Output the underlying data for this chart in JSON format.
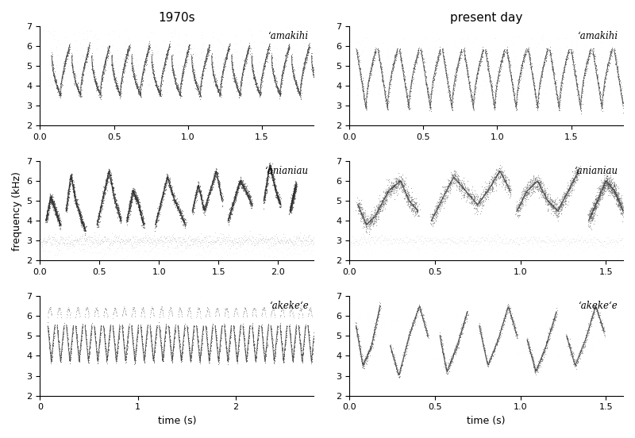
{
  "title_left": "1970s",
  "title_right": "present day",
  "ylabel": "frequency (kHz)",
  "xlabel": "time (s)",
  "background_color": "#ffffff",
  "panels": {
    "left": [
      {
        "species": "‘amakihi",
        "xlim": [
          0,
          1.85
        ],
        "xticks": [
          0,
          0.5,
          1.0,
          1.5
        ],
        "ylim": [
          2,
          7
        ],
        "yticks": [
          2,
          3,
          4,
          5,
          6,
          7
        ]
      },
      {
        "species": "‘anianiau",
        "xlim": [
          0,
          2.3
        ],
        "xticks": [
          0,
          0.5,
          1.0,
          1.5,
          2.0
        ],
        "ylim": [
          2,
          7
        ],
        "yticks": [
          2,
          3,
          4,
          5,
          6,
          7
        ]
      },
      {
        "species": "‘akeke‘e",
        "xlim": [
          0,
          2.8
        ],
        "xticks": [
          0,
          1,
          2
        ],
        "ylim": [
          2,
          7
        ],
        "yticks": [
          2,
          3,
          4,
          5,
          6,
          7
        ]
      }
    ],
    "right": [
      {
        "species": "‘amakihi",
        "xlim": [
          0,
          1.85
        ],
        "xticks": [
          0,
          0.5,
          1.0,
          1.5
        ],
        "ylim": [
          2,
          7
        ],
        "yticks": [
          2,
          3,
          4,
          5,
          6,
          7
        ]
      },
      {
        "species": "‘anianiau",
        "xlim": [
          0,
          1.6
        ],
        "xticks": [
          0,
          0.5,
          1.0,
          1.5
        ],
        "ylim": [
          2,
          7
        ],
        "yticks": [
          2,
          3,
          4,
          5,
          6,
          7
        ]
      },
      {
        "species": "‘akeke‘e",
        "xlim": [
          0,
          1.6
        ],
        "xticks": [
          0,
          0.5,
          1.0,
          1.5
        ],
        "ylim": [
          2,
          7
        ],
        "yticks": [
          2,
          3,
          4,
          5,
          6,
          7
        ]
      }
    ]
  }
}
